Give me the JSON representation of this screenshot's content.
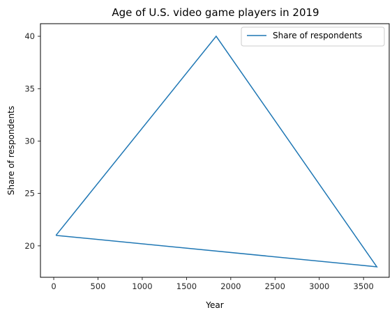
{
  "chart_data": {
    "type": "line",
    "title": "Age of U.S. video game players in 2019",
    "xlabel": "Year",
    "ylabel": "Share of respondents",
    "xlim": [
      -150,
      3790
    ],
    "ylim": [
      17,
      41.2
    ],
    "xticks": [
      0,
      500,
      1000,
      1500,
      2000,
      2500,
      3000,
      3500
    ],
    "yticks": [
      20,
      25,
      30,
      35,
      40
    ],
    "grid": false,
    "legend_position": "top-right",
    "series": [
      {
        "name": "Share of respondents",
        "color": "#1f77b4",
        "x": [
          25,
          1835,
          3650,
          25
        ],
        "y": [
          21,
          40,
          18,
          21
        ]
      }
    ]
  }
}
